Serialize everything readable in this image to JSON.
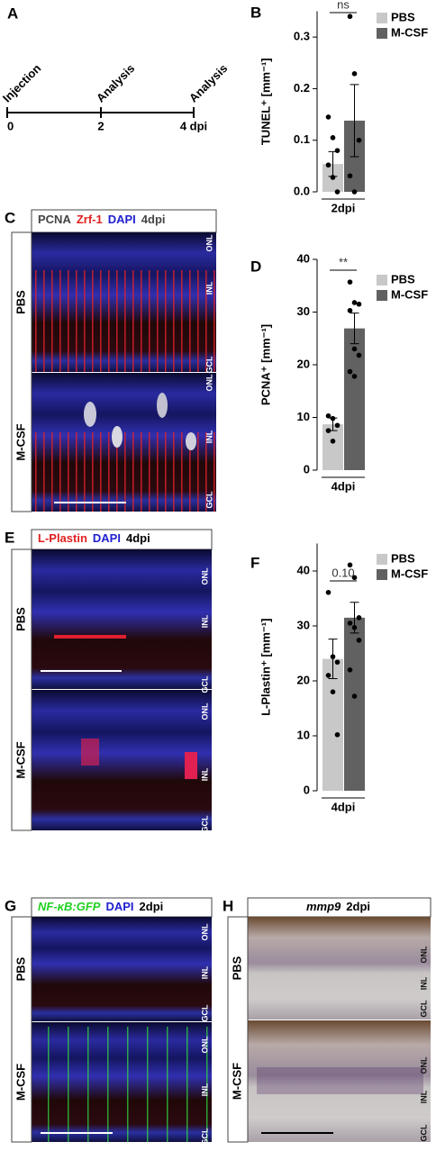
{
  "panels": {
    "a": "A",
    "b": "B",
    "c": "C",
    "d": "D",
    "e": "E",
    "f": "F",
    "g": "G",
    "h": "H"
  },
  "timeline": {
    "events": [
      "Injection",
      "Analysis",
      "Analysis"
    ],
    "ticks": [
      "0",
      "2",
      "4 dpi"
    ]
  },
  "chart_data": [
    {
      "type": "bar",
      "y_label": "TUNEL⁺ [mm⁻¹]",
      "x_label": "2dpi",
      "annotation": "ns",
      "categories": [
        "PBS",
        "M-CSF"
      ],
      "colors": [
        "#c8c8c8",
        "#616161"
      ],
      "values": [
        0.054,
        0.138
      ],
      "errors": [
        0.024,
        0.07
      ],
      "points": [
        [
          0.145,
          0.105,
          0.08,
          0.052,
          0.028,
          0.0
        ],
        [
          0.34,
          0.229,
          0.1,
          0.031,
          0.0
        ]
      ],
      "ylim": [
        0,
        0.35
      ],
      "yticks": [
        {
          "value": 0,
          "label": "0.0"
        },
        0.1,
        0.2,
        0.3
      ]
    },
    {
      "type": "bar",
      "y_label": "PCNA⁺ [mm⁻¹]",
      "x_label": "4dpi",
      "annotation": "**",
      "categories": [
        "PBS",
        "M-CSF"
      ],
      "colors": [
        "#c8c8c8",
        "#616161"
      ],
      "values": [
        8.7,
        26.9
      ],
      "errors": [
        1.2,
        2.9
      ],
      "points": [
        [
          10.3,
          9.8,
          8.5,
          7.5,
          5.5
        ],
        [
          35.7,
          31.8,
          31.5,
          30.3,
          23,
          21.8,
          18.7,
          17.8
        ]
      ],
      "ylim": [
        0,
        40
      ],
      "yticks": [
        0,
        10,
        20,
        30,
        40
      ]
    },
    {
      "type": "bar",
      "y_label": "L-Plastin⁺ [mm⁻¹]",
      "x_label": "4dpi",
      "annotation": "0.10",
      "categories": [
        "PBS",
        "M-CSF"
      ],
      "colors": [
        "#c8c8c8",
        "#616161"
      ],
      "values": [
        24,
        31.5
      ],
      "errors": [
        3.6,
        2.8
      ],
      "points": [
        [
          36.1,
          24.4,
          23.4,
          21.0,
          18.0,
          10.2
        ],
        [
          41.1,
          38.8,
          31.5,
          30.5,
          29.7,
          27.4,
          22,
          17.2
        ]
      ],
      "ylim": [
        0,
        45
      ],
      "yticks": [
        0,
        10,
        20,
        30,
        40
      ]
    }
  ],
  "micrographs": {
    "c": {
      "header": [
        "PCNA",
        "Zrf-1",
        "DAPI",
        "4dpi"
      ],
      "rows": [
        "PBS",
        "M-CSF"
      ],
      "layers": [
        "ONL",
        "INL",
        "GCL"
      ]
    },
    "e": {
      "header": [
        "L-Plastin",
        "DAPI",
        "4dpi"
      ],
      "rows": [
        "PBS",
        "M-CSF"
      ],
      "layers": [
        "ONL",
        "INL",
        "GCL"
      ]
    },
    "g": {
      "header": [
        "NF-κB:GFP",
        "DAPI",
        "2dpi"
      ],
      "rows": [
        "PBS",
        "M-CSF"
      ],
      "layers": [
        "ONL",
        "INL",
        "GCL"
      ]
    },
    "h": {
      "header": [
        "mmp9",
        "2dpi"
      ],
      "rows": [
        "PBS",
        "M-CSF"
      ],
      "layers": [
        "ONL",
        "INL",
        "GCL"
      ]
    }
  }
}
